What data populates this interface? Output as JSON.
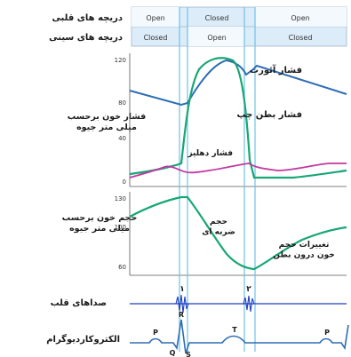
{
  "row_labels": {
    "heart_valves": "دریچه های قلبی",
    "semilunar_valves": "دریچه های سینی",
    "pressure_axis": "فشار خون برحسب\nمیلی متر جیوه",
    "volume_axis": "حجم خون برحسب\nمیلی متر جیوه",
    "heart_sounds": "صداهای قلب",
    "ecg": "الکتروکاردیوگرام"
  },
  "valve_states": {
    "av": [
      "Open",
      "Closed",
      "Open"
    ],
    "semilunar": [
      "Closed",
      "Open",
      "Closed"
    ]
  },
  "pressure_ticks": [
    "120",
    "80",
    "40",
    "0"
  ],
  "volume_ticks": [
    "130",
    "100",
    "60"
  ],
  "curve_labels": {
    "aortic": "فشار آئورت",
    "ventricular": "فشار بطن چپ",
    "atrial": "فشار دهلیز",
    "stroke_volume": "حجم\nضربه ای",
    "volume_change": "تغییرات حجم\nخون درون بطن"
  },
  "sound_labels": [
    "۱",
    "۲"
  ],
  "ecg_labels": [
    "P",
    "R",
    "Q",
    "S",
    "T",
    "P"
  ],
  "colors": {
    "aortic": "#2e6db4",
    "ventricular": "#17a674",
    "atrial": "#c03aa0",
    "volume": "#17a674",
    "sound": "#1f3fbf",
    "ecg": "#2e6db4",
    "divider": "#6ec3e8",
    "header_fill": "#dcecf8"
  }
}
